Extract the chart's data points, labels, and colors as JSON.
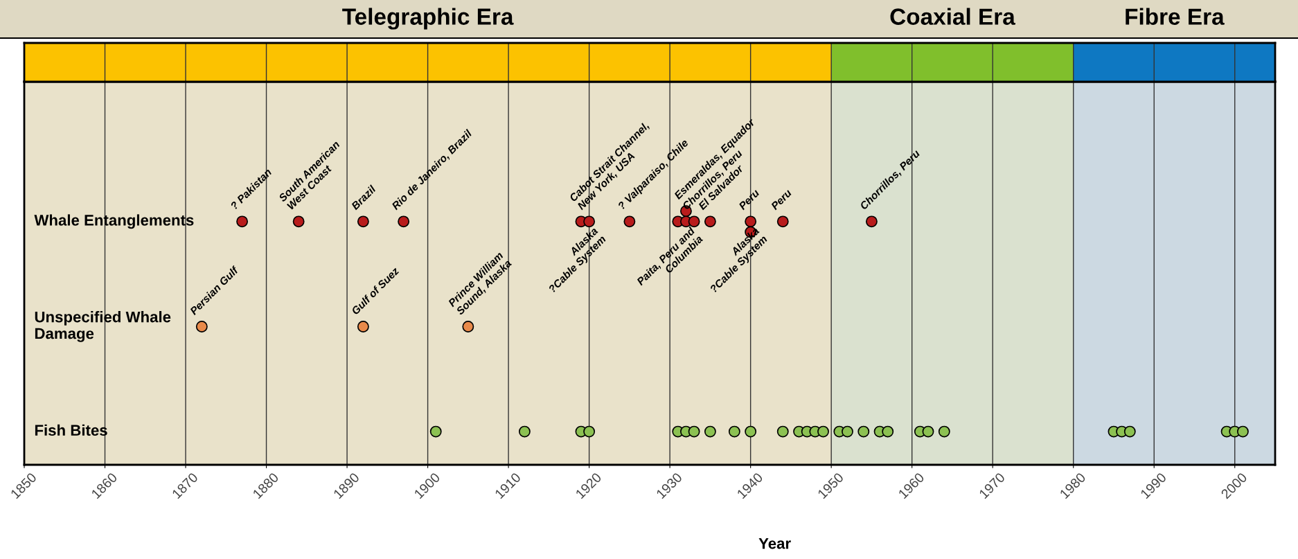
{
  "chart_data": {
    "type": "scatter",
    "orientation": "horizontal",
    "xlabel": "Year",
    "xlim": [
      1850,
      2005
    ],
    "xticks": [
      1850,
      1860,
      1870,
      1880,
      1890,
      1900,
      1910,
      1920,
      1930,
      1940,
      1950,
      1960,
      1970,
      1980,
      1990,
      2000
    ],
    "categories": [
      "Whale Entanglements",
      "Unspecified Whale\nDamage",
      "Fish Bites"
    ],
    "grid": "x",
    "marker": "circle",
    "bands": [
      {
        "axis": "x",
        "from": 1850,
        "to": 1950,
        "label": "Telegraphic Era",
        "color": "#fcc200"
      },
      {
        "axis": "x",
        "from": 1950,
        "to": 1980,
        "label": "Coaxial Era",
        "color": "#80bf2c"
      },
      {
        "axis": "x",
        "from": 1980,
        "to": 2005,
        "label": "Fibre Era",
        "color": "#0e78c2"
      }
    ],
    "series": [
      {
        "colors": [
          "#b81c1c",
          "#e88a4a",
          "#8cc152"
        ],
        "values": [
          1877,
          1872,
          1901
        ]
      },
      {
        "colors": [
          "#b81c1c",
          "#e88a4a",
          "#8cc152"
        ],
        "values": [
          1884,
          1892,
          1912
        ]
      },
      {
        "colors": [
          "#b81c1c",
          "#e88a4a",
          "#8cc152"
        ],
        "values": [
          1892,
          1905,
          1919
        ]
      },
      {
        "colors": [
          "#b81c1c",
          "#e88a4a",
          "#8cc152"
        ],
        "values": [
          1897,
          null,
          1920
        ]
      },
      {
        "colors": [
          "#b81c1c",
          "#e88a4a",
          "#8cc152"
        ],
        "values": [
          1919,
          null,
          1931
        ]
      },
      {
        "colors": [
          "#b81c1c",
          "#e88a4a",
          "#8cc152"
        ],
        "values": [
          1920,
          null,
          1932
        ]
      },
      {
        "colors": [
          "#b81c1c",
          "#e88a4a",
          "#8cc152"
        ],
        "values": [
          1925,
          null,
          1933
        ]
      },
      {
        "colors": [
          "#b81c1c",
          "#e88a4a",
          "#8cc152"
        ],
        "values": [
          1931,
          null,
          1935
        ]
      },
      {
        "colors": [
          "#b81c1c",
          "#e88a4a",
          "#8cc152"
        ],
        "values": [
          1932,
          null,
          1938
        ]
      },
      {
        "colors": [
          "#b81c1c",
          "#e88a4a",
          "#8cc152"
        ],
        "values": [
          1932,
          null,
          1940
        ]
      },
      {
        "colors": [
          "#b81c1c",
          "#e88a4a",
          "#8cc152"
        ],
        "values": [
          1933,
          null,
          1944
        ]
      },
      {
        "colors": [
          "#b81c1c",
          "#e88a4a",
          "#8cc152"
        ],
        "values": [
          1935,
          null,
          1946
        ]
      },
      {
        "colors": [
          "#b81c1c",
          "#e88a4a",
          "#8cc152"
        ],
        "values": [
          1940,
          null,
          1947
        ]
      },
      {
        "colors": [
          "#b81c1c",
          "#e88a4a",
          "#8cc152"
        ],
        "values": [
          1940,
          null,
          1948
        ]
      },
      {
        "colors": [
          "#b81c1c",
          "#e88a4a",
          "#8cc152"
        ],
        "values": [
          1944,
          null,
          1949
        ]
      },
      {
        "colors": [
          "#b81c1c",
          "#e88a4a",
          "#8cc152"
        ],
        "values": [
          1955,
          null,
          1951
        ]
      },
      {
        "colors": [
          "#b81c1c",
          "#e88a4a",
          "#8cc152"
        ],
        "values": [
          null,
          null,
          1952
        ]
      },
      {
        "colors": [
          "#b81c1c",
          "#e88a4a",
          "#8cc152"
        ],
        "values": [
          null,
          null,
          1954
        ]
      },
      {
        "colors": [
          "#b81c1c",
          "#e88a4a",
          "#8cc152"
        ],
        "values": [
          null,
          null,
          1956
        ]
      },
      {
        "colors": [
          "#b81c1c",
          "#e88a4a",
          "#8cc152"
        ],
        "values": [
          null,
          null,
          1957
        ]
      },
      {
        "colors": [
          "#b81c1c",
          "#e88a4a",
          "#8cc152"
        ],
        "values": [
          null,
          null,
          1961
        ]
      },
      {
        "colors": [
          "#b81c1c",
          "#e88a4a",
          "#8cc152"
        ],
        "values": [
          null,
          null,
          1962
        ]
      },
      {
        "colors": [
          "#b81c1c",
          "#e88a4a",
          "#8cc152"
        ],
        "values": [
          null,
          null,
          1964
        ]
      },
      {
        "colors": [
          "#b81c1c",
          "#e88a4a",
          "#8cc152"
        ],
        "values": [
          null,
          null,
          1985
        ]
      },
      {
        "colors": [
          "#b81c1c",
          "#e88a4a",
          "#8cc152"
        ],
        "values": [
          null,
          null,
          1986
        ]
      },
      {
        "colors": [
          "#b81c1c",
          "#e88a4a",
          "#8cc152"
        ],
        "values": [
          null,
          null,
          1987
        ]
      },
      {
        "colors": [
          "#b81c1c",
          "#e88a4a",
          "#8cc152"
        ],
        "values": [
          null,
          null,
          1999
        ]
      },
      {
        "colors": [
          "#b81c1c",
          "#e88a4a",
          "#8cc152"
        ],
        "values": [
          null,
          null,
          2000
        ]
      },
      {
        "colors": [
          "#b81c1c",
          "#e88a4a",
          "#8cc152"
        ],
        "values": [
          null,
          null,
          2001
        ]
      }
    ],
    "annotations": [
      {
        "text": "? Pakistan",
        "x": 1877,
        "y": "Whale Entanglements"
      },
      {
        "text": "South American\nWest Coast",
        "x": 1884,
        "y": "Whale Entanglements"
      },
      {
        "text": "Brazil",
        "x": 1892,
        "y": "Whale Entanglements"
      },
      {
        "text": "Rio de Janeiro, Brazil",
        "x": 1897,
        "y": "Whale Entanglements"
      },
      {
        "text": "Cabot Strait Channel,\nNew York, USA",
        "x": 1920,
        "y": "Whale Entanglements"
      },
      {
        "text": "Alaska\n?Cable System",
        "x": 1920,
        "y": "Whale Entanglements"
      },
      {
        "text": "? Valparaiso, Chile",
        "x": 1925,
        "y": "Whale Entanglements"
      },
      {
        "text": "Esmeraldas, Equador",
        "x": 1932,
        "y": "Whale Entanglements"
      },
      {
        "text": "Paita, Peru and\nColumbia",
        "x": 1932,
        "y": "Whale Entanglements"
      },
      {
        "text": "Chorrillos, Peru",
        "x": 1933,
        "y": "Whale Entanglements"
      },
      {
        "text": "El Salvador",
        "x": 1935,
        "y": "Whale Entanglements"
      },
      {
        "text": "Peru",
        "x": 1940,
        "y": "Whale Entanglements"
      },
      {
        "text": "Alaska\n?Cable System",
        "x": 1940,
        "y": "Whale Entanglements"
      },
      {
        "text": "Peru",
        "x": 1944,
        "y": "Whale Entanglements"
      },
      {
        "text": "Chorrillos, Peru",
        "x": 1955,
        "y": "Whale Entanglements"
      },
      {
        "text": "Persian Gulf",
        "x": 1872,
        "y": "Unspecified Whale\nDamage"
      },
      {
        "text": "Gulf of Suez",
        "x": 1892,
        "y": "Unspecified Whale\nDamage"
      },
      {
        "text": "Prince William\nSound, Alaska",
        "x": 1905,
        "y": "Unspecified Whale\nDamage"
      }
    ]
  }
}
